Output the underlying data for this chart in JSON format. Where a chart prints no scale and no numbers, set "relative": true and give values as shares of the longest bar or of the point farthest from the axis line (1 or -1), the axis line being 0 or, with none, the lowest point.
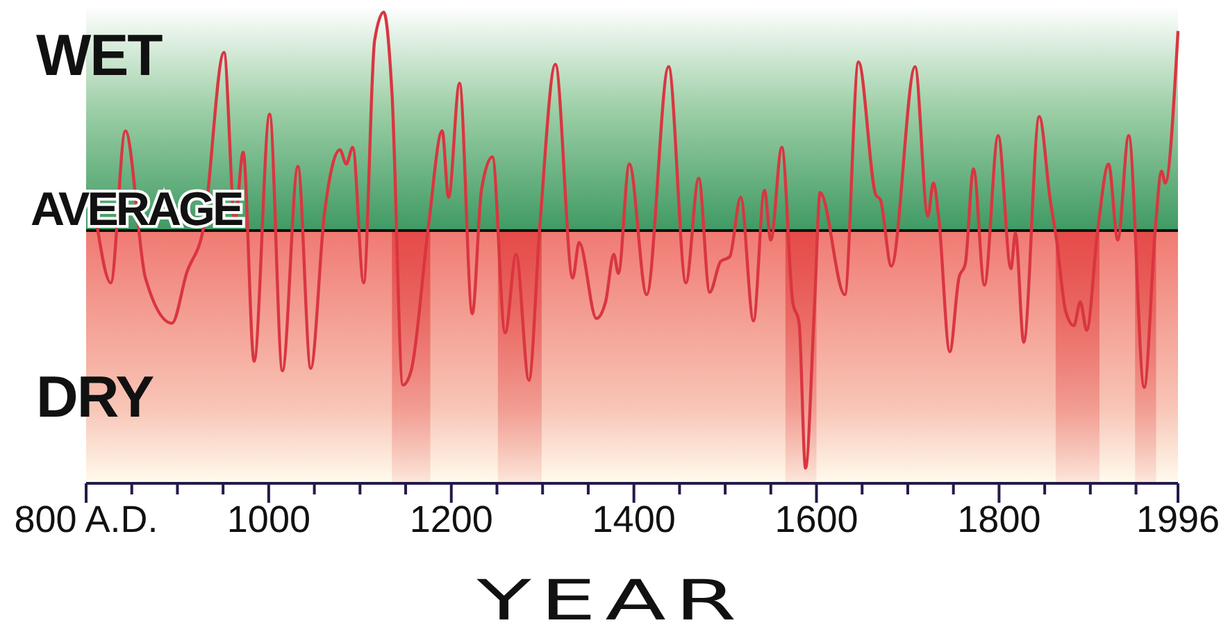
{
  "chart_data": {
    "type": "line",
    "relative": true,
    "xlabel": "YEAR",
    "annotations": [
      "WET",
      "DRY"
    ],
    "ref_lines": [
      {
        "axis": "y",
        "value": 0,
        "label": "AVERAGE",
        "color": "#111111"
      }
    ],
    "bands": [
      {
        "axis": "x",
        "from": 1135,
        "to": 1177,
        "color": "#e23b3b"
      },
      {
        "axis": "x",
        "from": 1251,
        "to": 1299,
        "color": "#e23b3b"
      },
      {
        "axis": "x",
        "from": 1566,
        "to": 1600,
        "color": "#e23b3b"
      },
      {
        "axis": "x",
        "from": 1862,
        "to": 1910,
        "color": "#e23b3b"
      },
      {
        "axis": "x",
        "from": 1949,
        "to": 1972,
        "color": "#e23b3b"
      }
    ],
    "xlim": [
      800,
      1996
    ],
    "xticks": [
      {
        "value": 800,
        "label": "800 A.D."
      },
      {
        "value": 850,
        "label": null
      },
      {
        "value": 900,
        "label": null
      },
      {
        "value": 950,
        "label": null
      },
      1000,
      {
        "value": 1050,
        "label": null
      },
      {
        "value": 1100,
        "label": null
      },
      {
        "value": 1150,
        "label": null
      },
      1200,
      {
        "value": 1250,
        "label": null
      },
      {
        "value": 1300,
        "label": null
      },
      {
        "value": 1350,
        "label": null
      },
      1400,
      {
        "value": 1450,
        "label": null
      },
      {
        "value": 1500,
        "label": null
      },
      {
        "value": 1550,
        "label": null
      },
      1600,
      {
        "value": 1650,
        "label": null
      },
      {
        "value": 1700,
        "label": null
      },
      {
        "value": 1750,
        "label": null
      },
      1800,
      {
        "value": 1850,
        "label": null
      },
      {
        "value": 1900,
        "label": null
      },
      {
        "value": 1950,
        "label": null
      },
      1996
    ],
    "grid": false,
    "legend": false,
    "marker": "none",
    "line_style": "solid",
    "series": [
      {
        "color": "#d93640",
        "x": [
          812,
          827,
          843,
          865,
          894,
          910,
          929,
          951,
          963,
          972,
          984,
          1001,
          1015,
          1032,
          1046,
          1061,
          1078,
          1085,
          1092,
          1104,
          1116,
          1126,
          1135,
          1147,
          1156,
          1175,
          1190,
          1197,
          1209,
          1223,
          1233,
          1245,
          1259,
          1271,
          1285,
          1297,
          1314,
          1333,
          1340,
          1359,
          1369,
          1378,
          1383,
          1395,
          1414,
          1438,
          1457,
          1471,
          1483,
          1495,
          1505,
          1517,
          1531,
          1543,
          1550,
          1562,
          1574,
          1581,
          1588,
          1598,
          1604,
          1631,
          1646,
          1665,
          1670,
          1682,
          1708,
          1722,
          1728,
          1734,
          1746,
          1756,
          1763,
          1772,
          1784,
          1799,
          1813,
          1818,
          1827,
          1844,
          1856,
          1863,
          1873,
          1882,
          1889,
          1896,
          1908,
          1920,
          1930,
          1942,
          1959,
          1971,
          1978,
          1982,
          1996
        ],
        "values": [
          0.02,
          -0.22,
          0.42,
          -0.2,
          -0.39,
          -0.18,
          0.02,
          0.75,
          0.04,
          0.33,
          -0.55,
          0.49,
          -0.59,
          0.27,
          -0.58,
          0.07,
          0.34,
          0.28,
          0.35,
          -0.22,
          0.8,
          0.92,
          0.58,
          -0.65,
          -0.59,
          0.02,
          0.42,
          0.14,
          0.62,
          -0.35,
          0.17,
          0.31,
          -0.43,
          -0.1,
          -0.63,
          0.02,
          0.7,
          -0.2,
          -0.05,
          -0.37,
          -0.3,
          -0.1,
          -0.18,
          0.28,
          -0.27,
          0.69,
          -0.22,
          0.22,
          -0.26,
          -0.13,
          -0.11,
          0.14,
          -0.38,
          0.17,
          -0.04,
          0.35,
          -0.3,
          -0.39,
          -1,
          -0.3,
          0.16,
          -0.27,
          0.71,
          0.15,
          0.13,
          -0.15,
          0.69,
          0.06,
          0.2,
          0.05,
          -0.51,
          -0.2,
          -0.14,
          0.26,
          -0.23,
          0.4,
          -0.16,
          -0.01,
          -0.47,
          0.48,
          0.13,
          -0.04,
          -0.34,
          -0.4,
          -0.3,
          -0.42,
          0,
          0.28,
          -0.04,
          0.4,
          -0.66,
          0,
          0.25,
          0.2,
          0.84
        ]
      }
    ]
  }
}
